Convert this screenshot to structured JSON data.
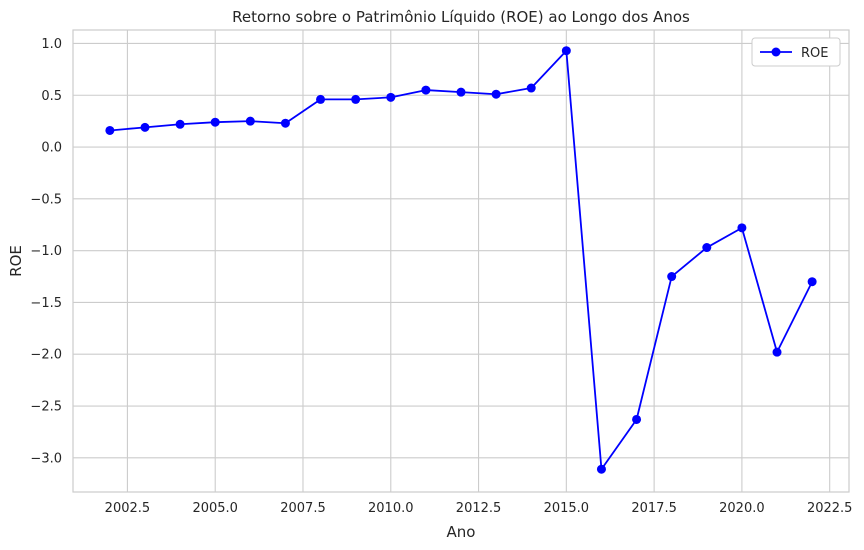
{
  "chart_data": {
    "type": "line",
    "title": "Retorno sobre o Patrimônio Líquido (ROE) ao Longo dos Anos",
    "xlabel": "Ano",
    "ylabel": "ROE",
    "xlim": [
      2000.95,
      2023.05
    ],
    "ylim": [
      -3.33,
      1.13
    ],
    "xticks": [
      2002.5,
      2005.0,
      2007.5,
      2010.0,
      2012.5,
      2015.0,
      2017.5,
      2020.0,
      2022.5
    ],
    "xtick_labels": [
      "2002.5",
      "2005.0",
      "2007.5",
      "2010.0",
      "2012.5",
      "2015.0",
      "2017.5",
      "2020.0",
      "2022.5"
    ],
    "yticks": [
      1.0,
      0.5,
      0.0,
      -0.5,
      -1.0,
      -1.5,
      -2.0,
      -2.5,
      -3.0
    ],
    "ytick_labels": [
      "1.0",
      "0.5",
      "0.0",
      "−0.5",
      "−1.0",
      "−1.5",
      "−2.0",
      "−2.5",
      "−3.0"
    ],
    "grid": true,
    "legend_position": "top-right",
    "series": [
      {
        "name": "ROE",
        "color": "#0000ff",
        "marker": "circle",
        "x": [
          2002,
          2003,
          2004,
          2005,
          2006,
          2007,
          2008,
          2009,
          2010,
          2011,
          2012,
          2013,
          2014,
          2015,
          2016,
          2017,
          2018,
          2019,
          2020,
          2021,
          2022
        ],
        "y": [
          0.16,
          0.19,
          0.22,
          0.24,
          0.25,
          0.23,
          0.46,
          0.46,
          0.48,
          0.55,
          0.53,
          0.51,
          0.57,
          0.93,
          -3.11,
          -2.63,
          -1.25,
          -0.97,
          -0.78,
          -1.98,
          -1.3
        ]
      }
    ]
  }
}
